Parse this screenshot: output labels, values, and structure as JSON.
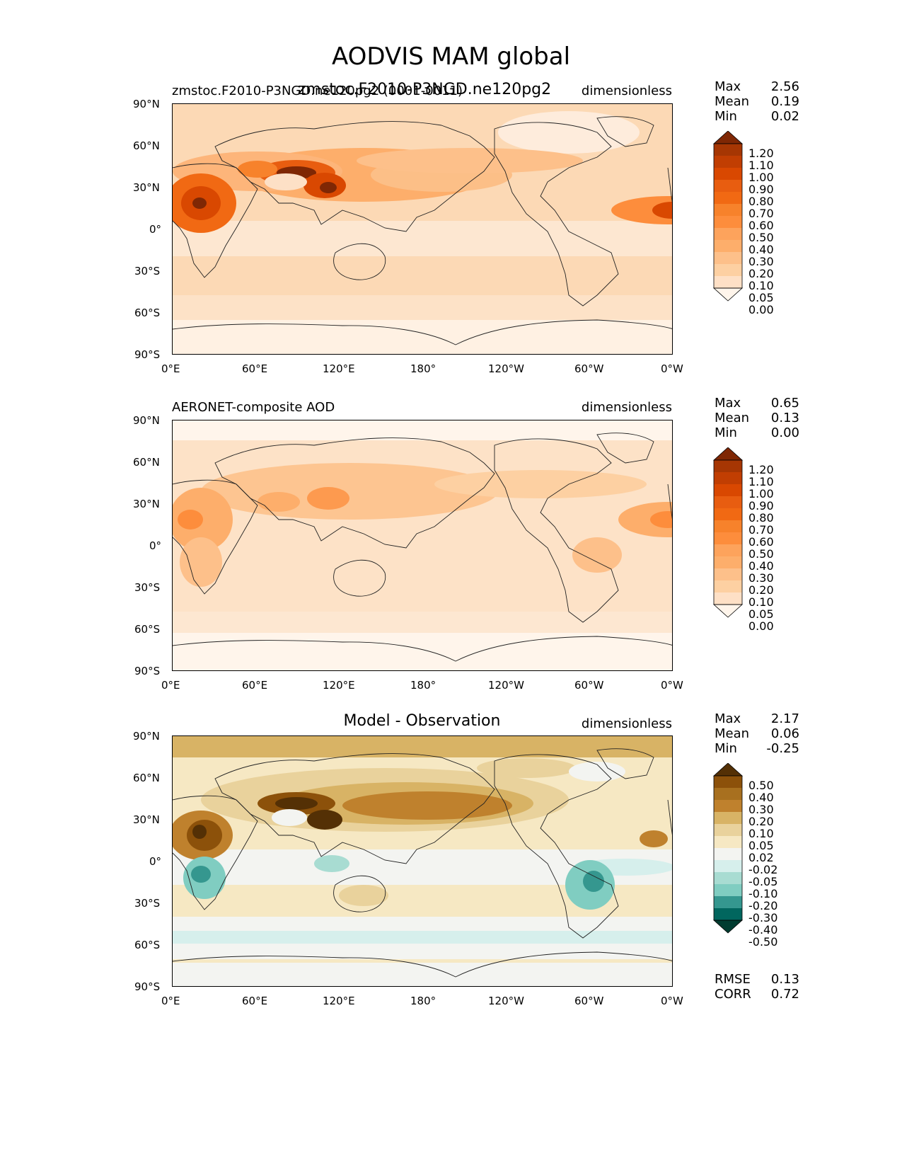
{
  "figure": {
    "title": "AODVIS MAM global"
  },
  "panels": [
    {
      "left_title": "zmstoc.F2010-P3NGD.ne120pg2 (0001-0011)",
      "center_title": "zmstoc.F2010-P3NGD.ne120pg2",
      "units": "dimensionless",
      "stats": {
        "max_label": "Max",
        "max": "2.56",
        "mean_label": "Mean",
        "mean": "0.19",
        "min_label": "Min",
        "min": "0.02"
      },
      "colorbar": {
        "levels": [
          "1.20",
          "1.10",
          "1.00",
          "0.90",
          "0.80",
          "0.70",
          "0.60",
          "0.50",
          "0.40",
          "0.30",
          "0.20",
          "0.10",
          "0.05",
          "0.00"
        ]
      }
    },
    {
      "left_title": "AERONET-composite AOD",
      "center_title": "",
      "units": "dimensionless",
      "stats": {
        "max_label": "Max",
        "max": "0.65",
        "mean_label": "Mean",
        "mean": "0.13",
        "min_label": "Min",
        "min": "0.00"
      },
      "colorbar": {
        "levels": [
          "1.20",
          "1.10",
          "1.00",
          "0.90",
          "0.80",
          "0.70",
          "0.60",
          "0.50",
          "0.40",
          "0.30",
          "0.20",
          "0.10",
          "0.05",
          "0.00"
        ]
      }
    },
    {
      "left_title": "",
      "center_title": "Model - Observation",
      "units": "dimensionless",
      "stats": {
        "max_label": "Max",
        "max": "2.17",
        "mean_label": "Mean",
        "mean": "0.06",
        "min_label": "Min",
        "min": "-0.25"
      },
      "colorbar": {
        "levels": [
          "0.50",
          "0.40",
          "0.30",
          "0.20",
          "0.10",
          "0.05",
          "0.02",
          "-0.02",
          "-0.05",
          "-0.10",
          "-0.20",
          "-0.30",
          "-0.40",
          "-0.50"
        ]
      },
      "metrics": {
        "rmse_label": "RMSE",
        "rmse": "0.13",
        "corr_label": "CORR",
        "corr": "0.72"
      }
    }
  ],
  "axes": {
    "lat_ticks": [
      "90°N",
      "60°N",
      "30°N",
      "0°",
      "30°S",
      "60°S",
      "90°S"
    ],
    "lon_ticks": [
      "0°E",
      "60°E",
      "120°E",
      "180°",
      "120°W",
      "60°W",
      "0°W"
    ]
  },
  "colors": {
    "orange_ramp": [
      "#7f2704",
      "#a63603",
      "#c13e02",
      "#d94801",
      "#e85d10",
      "#f16913",
      "#f7822b",
      "#fd8d3c",
      "#fda35c",
      "#fdae6b",
      "#fdc08a",
      "#fdd0a2",
      "#fee0c6",
      "#fff5eb"
    ],
    "diff_ramp": [
      "#543005",
      "#8c510a",
      "#a8701f",
      "#bf812d",
      "#d8b365",
      "#e9d29c",
      "#f6e8c3",
      "#f3f4f1",
      "#d6efec",
      "#a8dcd2",
      "#80cdc1",
      "#35978f",
      "#01665e",
      "#003c30"
    ]
  }
}
